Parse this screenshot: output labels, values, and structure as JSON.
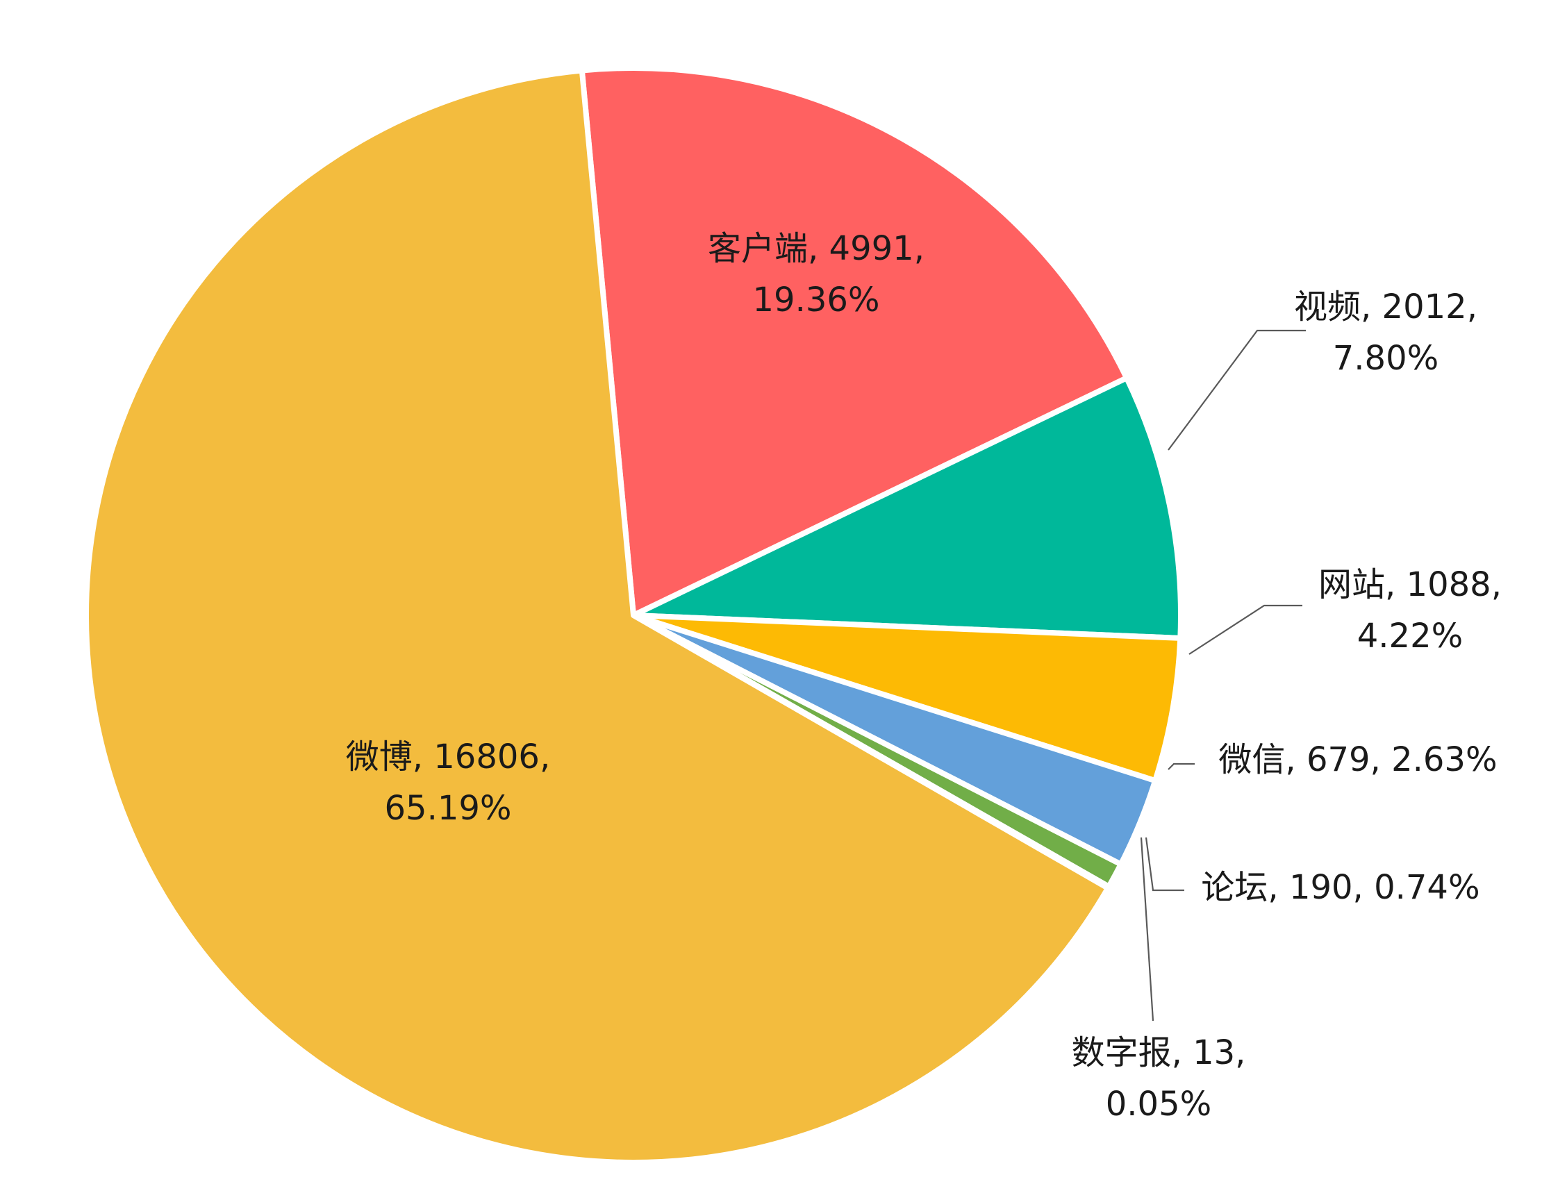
{
  "chart_data": {
    "type": "pie",
    "start_angle_deg": -5.4,
    "direction": "clockwise",
    "slices": [
      {
        "name": "客户端",
        "value": 4991,
        "percent": "19.36%",
        "color": "#FF6161",
        "line1": "客户端, 4991,",
        "line2": "19.36%"
      },
      {
        "name": "视频",
        "value": 2012,
        "percent": "7.80%",
        "color": "#00B89A",
        "line1": "视频, 2012,",
        "line2": "7.80%"
      },
      {
        "name": "网站",
        "value": 1088,
        "percent": "4.22%",
        "color": "#FDBA04",
        "line1": "网站, 1088,",
        "line2": "4.22%"
      },
      {
        "name": "微信",
        "value": 679,
        "percent": "2.63%",
        "color": "#63A0DA",
        "line1": "微信, 679, 2.63%",
        "line2": ""
      },
      {
        "name": "论坛",
        "value": 190,
        "percent": "0.74%",
        "color": "#71AE48",
        "line1": "论坛, 190, 0.74%",
        "line2": ""
      },
      {
        "name": "数字报",
        "value": 13,
        "percent": "0.05%",
        "color": "#8C8C8C",
        "line1": "数字报, 13,",
        "line2": "0.05%"
      },
      {
        "name": "微博",
        "value": 16806,
        "percent": "65.19%",
        "color": "#F3BC3E",
        "line1": "微博, 16806,",
        "line2": "65.19%"
      }
    ]
  }
}
